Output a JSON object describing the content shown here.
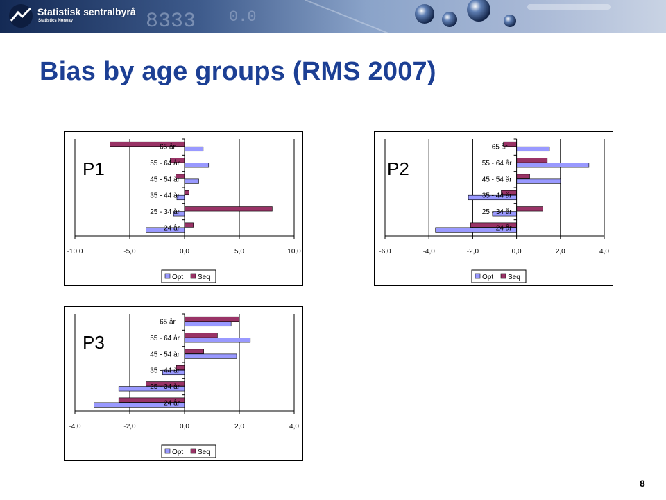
{
  "header": {
    "logo_name": "Statistisk sentralbyrå",
    "logo_sub": "Statistics Norway"
  },
  "title": "Bias by age groups (RMS 2007)",
  "page_number": "8",
  "colors": {
    "opt": "#9999ff",
    "seq": "#993366",
    "title": "#1c3f94"
  },
  "chart_data": [
    {
      "type": "bar",
      "orientation": "horizontal",
      "panel_label": "P1",
      "categories": [
        "65 år -",
        "55 - 64 år",
        "45 - 54 år",
        "35 - 44 år",
        "25 - 34 år",
        "- 24 år"
      ],
      "series": [
        {
          "name": "Opt",
          "values": [
            1.7,
            2.2,
            1.3,
            -0.7,
            -1.0,
            -3.5
          ]
        },
        {
          "name": "Seq",
          "values": [
            -6.8,
            -1.3,
            -0.8,
            0.4,
            8.0,
            0.8
          ]
        }
      ],
      "xlim": [
        -10,
        10
      ],
      "xticks": [
        "-10,0",
        "-5,0",
        "0,0",
        "5,0",
        "10,0"
      ],
      "xtick_values": [
        -10,
        -5,
        0,
        5,
        10
      ],
      "legend": [
        "Opt",
        "Seq"
      ],
      "legend_position": "bottom"
    },
    {
      "type": "bar",
      "orientation": "horizontal",
      "panel_label": "P2",
      "categories": [
        "65 år -",
        "55 - 64 år",
        "45 - 54 år",
        "35 - 44 år",
        "25 - 34 år",
        "24 år"
      ],
      "series": [
        {
          "name": "Opt",
          "values": [
            1.5,
            3.3,
            2.0,
            -2.2,
            -1.1,
            -3.7
          ]
        },
        {
          "name": "Seq",
          "values": [
            -0.6,
            1.4,
            0.6,
            -0.7,
            1.2,
            -2.1
          ]
        }
      ],
      "xlim": [
        -6,
        4
      ],
      "xticks": [
        "-6,0",
        "-4,0",
        "-2,0",
        "0,0",
        "2,0",
        "4,0"
      ],
      "xtick_values": [
        -6,
        -4,
        -2,
        0,
        2,
        4
      ],
      "legend": [
        "Opt",
        "Seq"
      ],
      "legend_position": "bottom"
    },
    {
      "type": "bar",
      "orientation": "horizontal",
      "panel_label": "P3",
      "categories": [
        "65 år -",
        "55 - 64 år",
        "45 - 54 år",
        "35 - 44 år",
        "25 - 34 år",
        "24 år"
      ],
      "series": [
        {
          "name": "Opt",
          "values": [
            1.7,
            2.4,
            1.9,
            -0.8,
            -2.4,
            -3.3
          ]
        },
        {
          "name": "Seq",
          "values": [
            2.0,
            1.2,
            0.7,
            -0.3,
            -1.4,
            -2.4
          ]
        }
      ],
      "xlim": [
        -4,
        4
      ],
      "xticks": [
        "-4,0",
        "-2,0",
        "0,0",
        "2,0",
        "4,0"
      ],
      "xtick_values": [
        -4,
        -2,
        0,
        2,
        4
      ],
      "legend": [
        "Opt",
        "Seq"
      ],
      "legend_position": "bottom"
    }
  ]
}
